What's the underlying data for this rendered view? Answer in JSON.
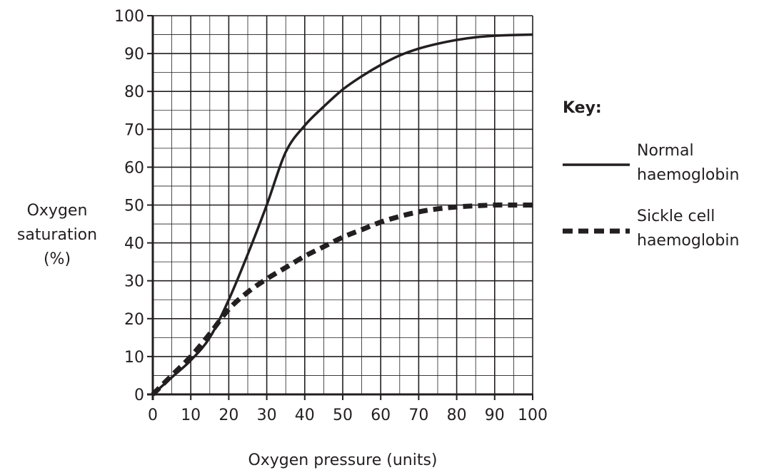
{
  "chart_data": {
    "type": "line",
    "title": "",
    "xlabel": "Oxygen pressure (units)",
    "ylabel_lines": [
      "Oxygen",
      "saturation",
      "(%)"
    ],
    "xlim": [
      0,
      100
    ],
    "ylim": [
      0,
      100
    ],
    "xticks": [
      0,
      10,
      20,
      30,
      40,
      50,
      60,
      70,
      80,
      90,
      100
    ],
    "yticks": [
      0,
      10,
      20,
      30,
      40,
      50,
      60,
      70,
      80,
      90,
      100
    ],
    "grid": true,
    "legend_title": "Key:",
    "legend_position": "right",
    "series": [
      {
        "name_lines": [
          "Normal",
          "haemoglobin"
        ],
        "style": "solid",
        "color": "#231f20",
        "x": [
          0,
          5,
          10,
          15,
          20,
          25,
          30,
          35,
          40,
          45,
          50,
          55,
          60,
          65,
          70,
          75,
          80,
          85,
          90,
          95,
          100
        ],
        "y": [
          0,
          4.5,
          9,
          15,
          25,
          37,
          50,
          64,
          71,
          76,
          80.5,
          84,
          87,
          89.5,
          91.3,
          92.6,
          93.6,
          94.3,
          94.7,
          94.9,
          95
        ]
      },
      {
        "name_lines": [
          "Sickle cell",
          "haemoglobin"
        ],
        "style": "dashed",
        "color": "#231f20",
        "x": [
          0,
          5,
          10,
          15,
          20,
          25,
          30,
          35,
          40,
          45,
          50,
          55,
          60,
          65,
          70,
          75,
          80,
          85,
          90,
          95,
          100
        ],
        "y": [
          0,
          5,
          10,
          16,
          22.5,
          27,
          30.5,
          33.5,
          36.5,
          39,
          41.5,
          43.5,
          45.5,
          47,
          48.2,
          49,
          49.5,
          49.8,
          50,
          50,
          50
        ]
      }
    ]
  }
}
